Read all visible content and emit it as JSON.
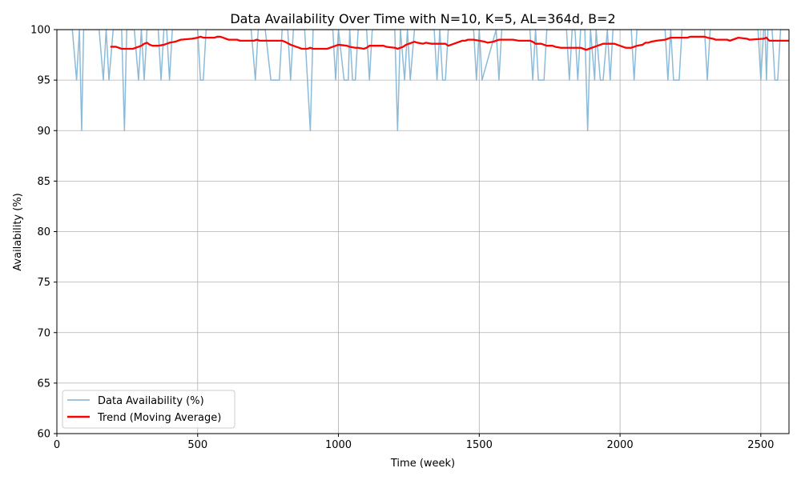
{
  "chart_data": {
    "type": "line",
    "title": "Data Availability Over Time with N=10, K=5, AL=364d, B=2",
    "xlabel": "Time (week)",
    "ylabel": "Availability (%)",
    "xlim": [
      0,
      2600
    ],
    "ylim": [
      60,
      100
    ],
    "xticks": [
      0,
      500,
      1000,
      1500,
      2000,
      2500
    ],
    "yticks": [
      60,
      65,
      70,
      75,
      80,
      85,
      90,
      95,
      100
    ],
    "grid": true,
    "legend_position": "lower-left",
    "series": [
      {
        "name": "Data Availability (%)",
        "color": "#7fb2d5",
        "x": [
          0,
          55,
          70,
          80,
          88,
          95,
          110,
          150,
          165,
          175,
          185,
          200,
          230,
          240,
          248,
          260,
          275,
          290,
          300,
          310,
          320,
          340,
          360,
          370,
          380,
          390,
          400,
          410,
          420,
          440,
          490,
          500,
          510,
          520,
          530,
          690,
          705,
          715,
          740,
          760,
          790,
          800,
          820,
          830,
          840,
          880,
          900,
          910,
          980,
          990,
          1000,
          1020,
          1035,
          1040,
          1050,
          1060,
          1070,
          1100,
          1110,
          1120,
          1200,
          1210,
          1220,
          1235,
          1245,
          1255,
          1270,
          1340,
          1350,
          1360,
          1370,
          1380,
          1390,
          1480,
          1490,
          1500,
          1510,
          1560,
          1570,
          1580,
          1680,
          1690,
          1700,
          1710,
          1730,
          1740,
          1810,
          1820,
          1830,
          1840,
          1850,
          1860,
          1875,
          1885,
          1895,
          1910,
          1915,
          1930,
          1940,
          1955,
          1965,
          1975,
          2040,
          2050,
          2060,
          2160,
          2170,
          2180,
          2190,
          2210,
          2220,
          2300,
          2310,
          2320,
          2490,
          2500,
          2510,
          2515,
          2520,
          2525,
          2540,
          2550,
          2560,
          2570,
          2600
        ],
        "values": [
          100,
          100,
          95,
          100,
          90,
          100,
          100,
          100,
          95,
          100,
          95,
          100,
          100,
          90,
          100,
          100,
          100,
          95,
          100,
          95,
          100,
          100,
          100,
          95,
          100,
          100,
          95,
          100,
          100,
          100,
          100,
          100,
          95,
          95,
          100,
          100,
          95,
          100,
          100,
          95,
          95,
          100,
          100,
          95,
          100,
          100,
          90,
          100,
          100,
          95,
          100,
          95,
          95,
          100,
          95,
          95,
          100,
          100,
          95,
          100,
          100,
          90,
          100,
          95,
          100,
          95,
          100,
          100,
          95,
          100,
          95,
          95,
          100,
          100,
          95,
          100,
          95,
          100,
          95,
          100,
          100,
          95,
          100,
          95,
          95,
          100,
          100,
          95,
          100,
          100,
          95,
          100,
          100,
          90,
          100,
          95,
          100,
          95,
          95,
          100,
          95,
          100,
          100,
          95,
          100,
          100,
          95,
          100,
          95,
          95,
          100,
          100,
          95,
          100,
          100,
          95,
          100,
          100,
          95,
          100,
          100,
          95,
          95,
          100,
          100
        ]
      },
      {
        "name": "Trend (Moving Average)",
        "color": "#ff0000",
        "x": [
          190,
          210,
          220,
          230,
          270,
          290,
          300,
          310,
          320,
          330,
          340,
          360,
          380,
          400,
          420,
          440,
          480,
          500,
          510,
          520,
          560,
          570,
          580,
          590,
          610,
          640,
          650,
          670,
          700,
          710,
          720,
          800,
          810,
          830,
          840,
          860,
          870,
          880,
          890,
          900,
          910,
          920,
          960,
          980,
          990,
          1000,
          1030,
          1040,
          1060,
          1070,
          1090,
          1100,
          1110,
          1160,
          1170,
          1200,
          1210,
          1230,
          1240,
          1260,
          1270,
          1280,
          1300,
          1310,
          1330,
          1340,
          1380,
          1390,
          1410,
          1420,
          1440,
          1450,
          1460,
          1480,
          1500,
          1520,
          1530,
          1550,
          1560,
          1570,
          1580,
          1600,
          1620,
          1640,
          1680,
          1690,
          1700,
          1720,
          1740,
          1760,
          1770,
          1790,
          1800,
          1820,
          1830,
          1860,
          1870,
          1880,
          1890,
          1910,
          1920,
          1930,
          1940,
          1980,
          1990,
          2000,
          2010,
          2020,
          2040,
          2050,
          2060,
          2080,
          2090,
          2100,
          2110,
          2130,
          2160,
          2170,
          2180,
          2240,
          2250,
          2300,
          2310,
          2330,
          2340,
          2380,
          2390,
          2410,
          2420,
          2450,
          2460,
          2510,
          2520,
          2530,
          2600
        ],
        "values": [
          98.3,
          98.3,
          98.2,
          98.1,
          98.1,
          98.3,
          98.4,
          98.6,
          98.7,
          98.5,
          98.4,
          98.4,
          98.5,
          98.7,
          98.8,
          99.0,
          99.1,
          99.2,
          99.3,
          99.2,
          99.2,
          99.3,
          99.3,
          99.2,
          99.0,
          99.0,
          98.9,
          98.9,
          98.9,
          99.0,
          98.9,
          98.9,
          98.8,
          98.5,
          98.4,
          98.2,
          98.1,
          98.1,
          98.1,
          98.2,
          98.1,
          98.1,
          98.1,
          98.3,
          98.4,
          98.5,
          98.4,
          98.3,
          98.2,
          98.2,
          98.1,
          98.2,
          98.4,
          98.4,
          98.3,
          98.2,
          98.1,
          98.3,
          98.5,
          98.7,
          98.8,
          98.7,
          98.6,
          98.7,
          98.6,
          98.6,
          98.6,
          98.4,
          98.6,
          98.7,
          98.9,
          98.9,
          99.0,
          99.0,
          98.9,
          98.8,
          98.7,
          98.8,
          98.9,
          99.0,
          99.0,
          99.0,
          99.0,
          98.9,
          98.9,
          98.8,
          98.6,
          98.6,
          98.4,
          98.4,
          98.3,
          98.2,
          98.2,
          98.2,
          98.2,
          98.2,
          98.1,
          98.0,
          98.1,
          98.3,
          98.4,
          98.5,
          98.6,
          98.6,
          98.5,
          98.4,
          98.3,
          98.2,
          98.2,
          98.3,
          98.4,
          98.5,
          98.7,
          98.7,
          98.8,
          98.9,
          99.0,
          99.1,
          99.2,
          99.2,
          99.3,
          99.3,
          99.2,
          99.1,
          99.0,
          99.0,
          98.9,
          99.1,
          99.2,
          99.1,
          99.0,
          99.1,
          99.2,
          98.9,
          98.9
        ]
      }
    ]
  }
}
